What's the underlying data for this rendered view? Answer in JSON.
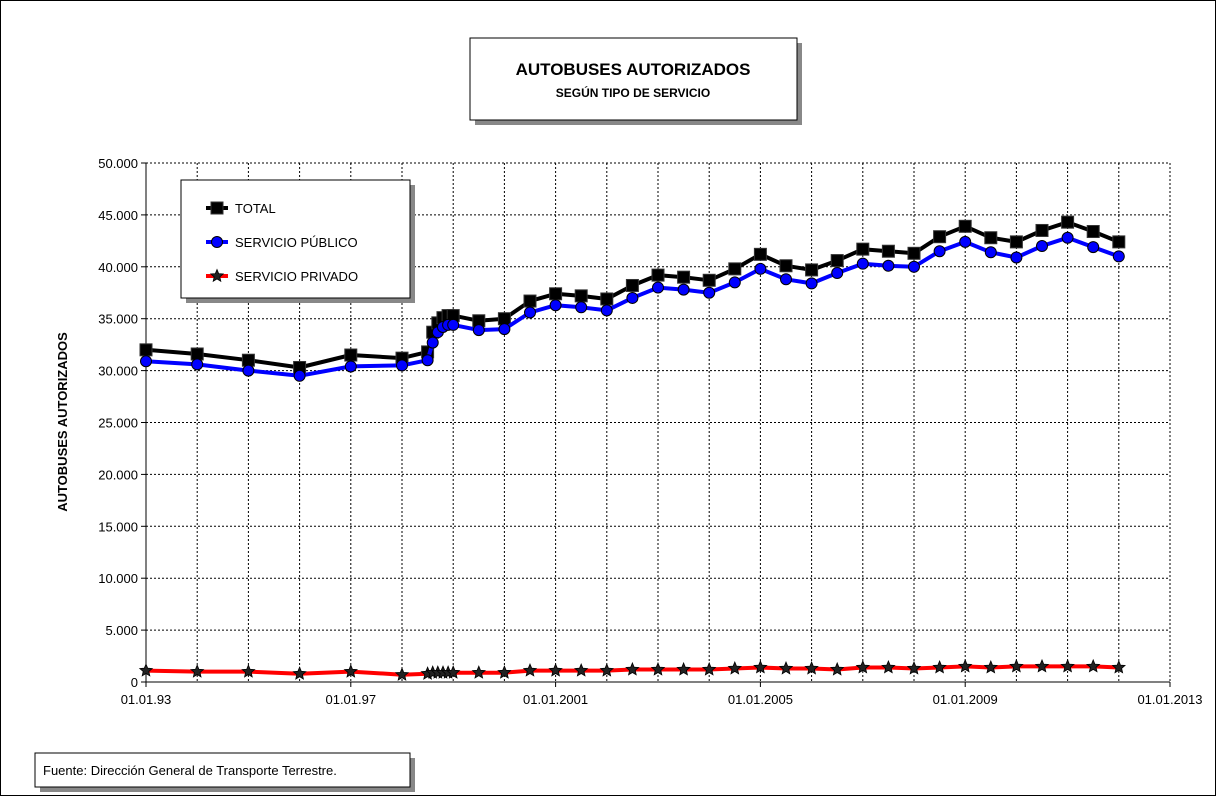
{
  "chart_data": {
    "type": "line",
    "title": "AUTOBUSES AUTORIZADOS",
    "subtitle": "SEGÚN TIPO DE SERVICIO",
    "y_label": "AUTOBUSES  AUTORIZADOS",
    "source": "Fuente: Dirección General de Transporte Terrestre.",
    "x": [
      1993,
      1994,
      1995,
      1996,
      1997,
      1998,
      1998.5,
      1998.6,
      1998.7,
      1998.8,
      1998.9,
      1999,
      1999.5,
      2000,
      2000.5,
      2001,
      2001.5,
      2002,
      2002.5,
      2003,
      2003.5,
      2004,
      2004.5,
      2005,
      2005.5,
      2006,
      2006.5,
      2007,
      2007.5,
      2008,
      2008.5,
      2009,
      2009.5,
      2010,
      2010.5,
      2011,
      2011.5,
      2012
    ],
    "series": [
      {
        "name": "TOTAL",
        "color": "#000000",
        "marker": "square",
        "values": [
          32000,
          31600,
          31000,
          30300,
          31500,
          31200,
          31800,
          33700,
          34600,
          35100,
          35300,
          35300,
          34800,
          35000,
          36700,
          37400,
          37200,
          36900,
          38200,
          39200,
          39000,
          38700,
          39800,
          41200,
          40100,
          39700,
          40600,
          41700,
          41500,
          41300,
          42900,
          43900,
          42800,
          42400,
          43500,
          44300,
          43400,
          42400
        ]
      },
      {
        "name": "SERVICIO PÚBLICO",
        "color": "#0000ff",
        "marker": "circle",
        "values": [
          30900,
          30600,
          30000,
          29500,
          30400,
          30500,
          31000,
          32700,
          33700,
          34200,
          34400,
          34400,
          33900,
          34000,
          35600,
          36300,
          36100,
          35800,
          37000,
          38000,
          37800,
          37500,
          38500,
          39800,
          38800,
          38400,
          39400,
          40300,
          40100,
          40000,
          41500,
          42400,
          41400,
          40900,
          42000,
          42800,
          41900,
          41000
        ]
      },
      {
        "name": "SERVICIO PRIVADO",
        "color": "#ff0000",
        "marker": "star",
        "values": [
          1100,
          1000,
          1000,
          800,
          1000,
          700,
          800,
          900,
          900,
          900,
          900,
          900,
          900,
          900,
          1100,
          1100,
          1100,
          1100,
          1200,
          1200,
          1200,
          1200,
          1300,
          1400,
          1300,
          1300,
          1200,
          1400,
          1400,
          1300,
          1400,
          1500,
          1400,
          1500,
          1500,
          1500,
          1500,
          1400
        ]
      }
    ],
    "xlim": [
      1993,
      2013
    ],
    "xticks": [
      {
        "value": 1993,
        "label": "01.01.93"
      },
      {
        "value": 1997,
        "label": "01.01.97"
      },
      {
        "value": 2001,
        "label": "01.01.2001"
      },
      {
        "value": 2005,
        "label": "01.01.2005"
      },
      {
        "value": 2009,
        "label": "01.01.2009"
      },
      {
        "value": 2013,
        "label": "01.01.2013"
      }
    ],
    "xminorticks": [
      1994,
      1995,
      1996,
      1998,
      1999,
      2000,
      2002,
      2003,
      2004,
      2006,
      2007,
      2008,
      2010,
      2011,
      2012
    ],
    "ylim": [
      0,
      50000
    ],
    "yticks": [
      0,
      {
        "value": 5000,
        "label": "5.000"
      },
      {
        "value": 10000,
        "label": "10.000"
      },
      {
        "value": 15000,
        "label": "15.000"
      },
      {
        "value": 20000,
        "label": "20.000"
      },
      {
        "value": 25000,
        "label": "25.000"
      },
      {
        "value": 30000,
        "label": "30.000"
      },
      {
        "value": 35000,
        "label": "35.000"
      },
      {
        "value": 40000,
        "label": "40.000"
      },
      {
        "value": 45000,
        "label": "45.000"
      },
      {
        "value": 50000,
        "label": "50.000"
      }
    ],
    "grid": true,
    "legend": "upper left"
  }
}
